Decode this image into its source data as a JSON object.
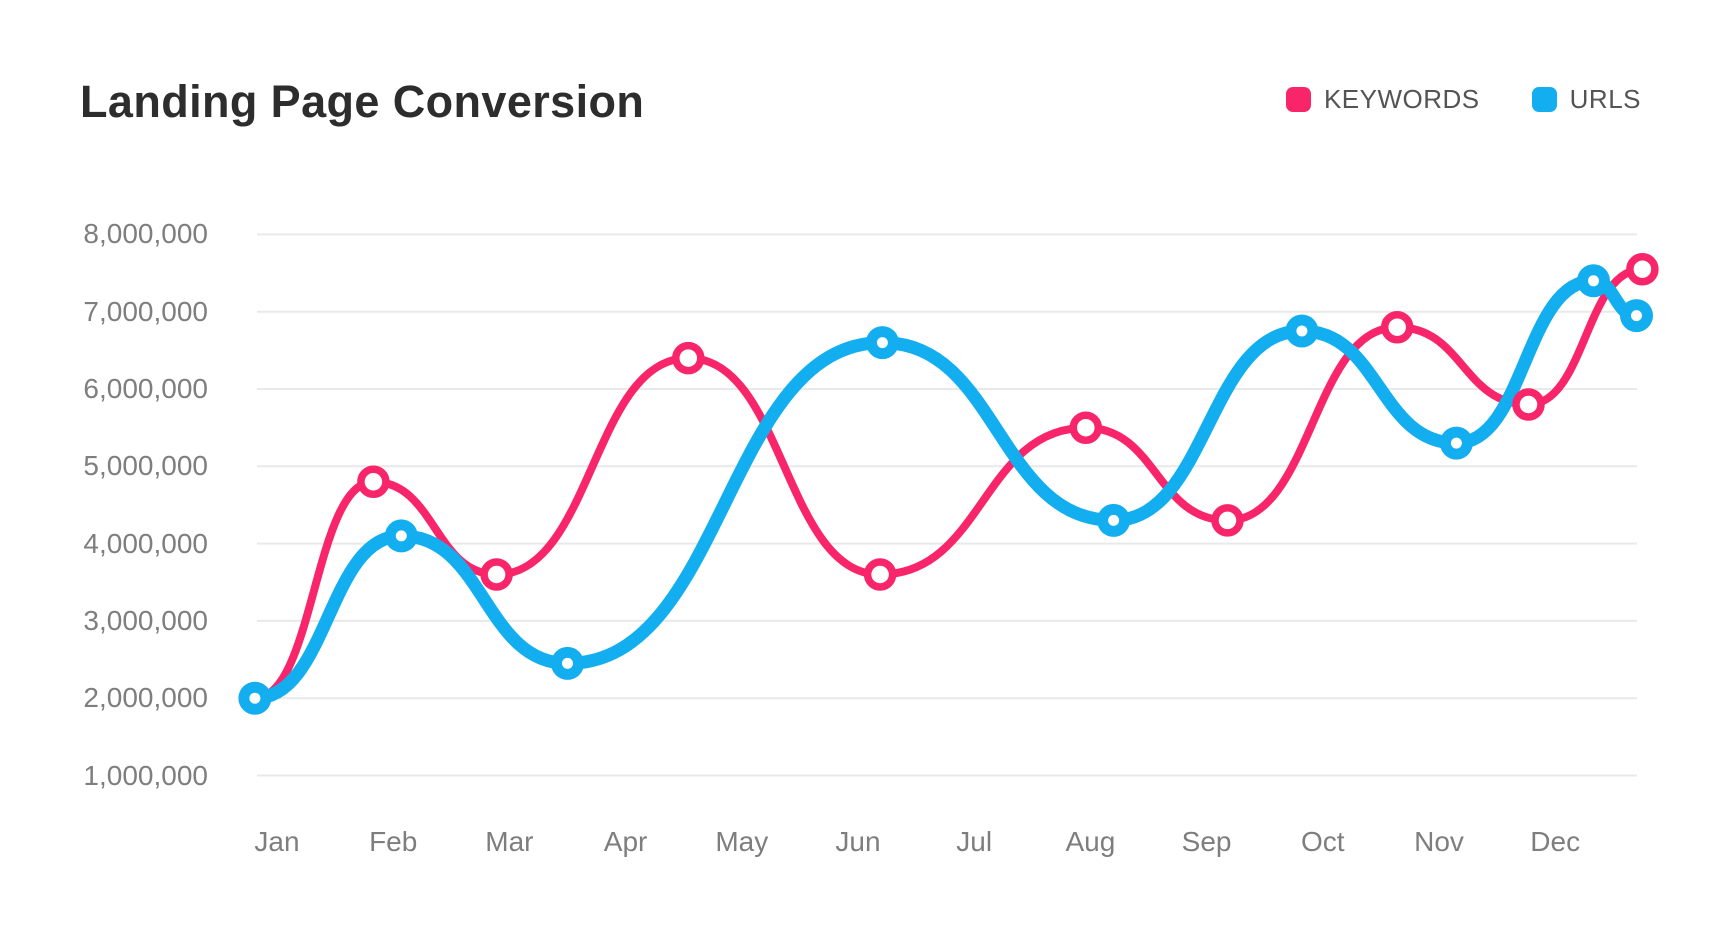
{
  "chart_data": {
    "type": "line",
    "title": "Landing Page Conversion",
    "xlabel": "",
    "ylabel": "",
    "x_tick_labels": [
      "Jan",
      "Feb",
      "Mar",
      "Apr",
      "May",
      "Jun",
      "Jul",
      "Aug",
      "Sep",
      "Oct",
      "Nov",
      "Dec"
    ],
    "y_ticks": [
      {
        "label": "8,000,000",
        "value": 8000000
      },
      {
        "label": "7,000,000",
        "value": 7000000
      },
      {
        "label": "6,000,000",
        "value": 6000000
      },
      {
        "label": "5,000,000",
        "value": 5000000
      },
      {
        "label": "4,000,000",
        "value": 4000000
      },
      {
        "label": "3,000,000",
        "value": 3000000
      },
      {
        "label": "2,000,000",
        "value": 2000000
      },
      {
        "label": "1,000,000",
        "value": 1000000
      }
    ],
    "ylim": [
      1000000,
      8000000
    ],
    "grid": "horizontal-only",
    "gridline_color": "#e9e9e9",
    "legend_position": "top-right",
    "axis_text_color": "#7e7e7e",
    "series": [
      {
        "name": "KEYWORDS",
        "color": "#f9256b",
        "line_width": 8,
        "marker": "open-circle",
        "points": [
          {
            "month_x": -0.19,
            "value": 2000000
          },
          {
            "month_x": 0.83,
            "value": 4800000
          },
          {
            "month_x": 1.89,
            "value": 3600000
          },
          {
            "month_x": 3.54,
            "value": 6400000
          },
          {
            "month_x": 5.19,
            "value": 3600000
          },
          {
            "month_x": 6.96,
            "value": 5500000
          },
          {
            "month_x": 8.18,
            "value": 4300000
          },
          {
            "month_x": 9.64,
            "value": 6800000
          },
          {
            "month_x": 10.77,
            "value": 5800000
          },
          {
            "month_x": 11.75,
            "value": 7550000
          }
        ]
      },
      {
        "name": "URLS",
        "color": "#12aeef",
        "line_width": 13,
        "marker": "filled-circle-white-dot",
        "points": [
          {
            "month_x": -0.19,
            "value": 2000000
          },
          {
            "month_x": 1.07,
            "value": 4100000
          },
          {
            "month_x": 2.5,
            "value": 2450000
          },
          {
            "month_x": 5.21,
            "value": 6600000
          },
          {
            "month_x": 7.2,
            "value": 4300000
          },
          {
            "month_x": 8.82,
            "value": 6750000
          },
          {
            "month_x": 10.15,
            "value": 5300000
          },
          {
            "month_x": 11.33,
            "value": 7400000
          },
          {
            "month_x": 11.7,
            "value": 6950000
          }
        ]
      }
    ]
  }
}
